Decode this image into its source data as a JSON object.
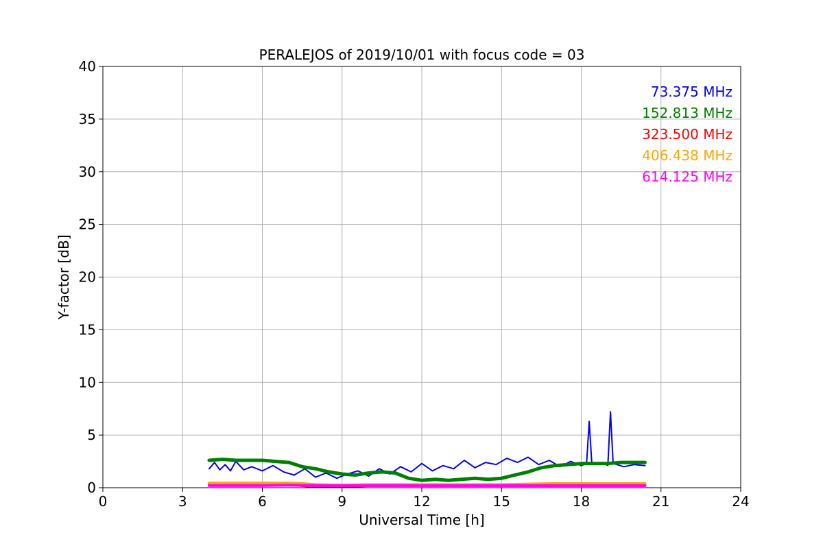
{
  "chart_data": {
    "type": "line",
    "title": "PERALEJOS of 2019/10/01 with focus code = 03",
    "xlabel": "Universal Time [h]",
    "ylabel": "Y-factor [dB]",
    "xlim": [
      0,
      24
    ],
    "ylim": [
      0,
      40
    ],
    "xticks": [
      0,
      3,
      6,
      9,
      12,
      15,
      18,
      21,
      24
    ],
    "yticks": [
      0,
      5,
      10,
      15,
      20,
      25,
      30,
      35,
      40
    ],
    "grid": true,
    "legend_position": "top-right",
    "series": [
      {
        "name": "73.375 MHz",
        "color": "#0000ff",
        "x": [
          4.0,
          4.2,
          4.4,
          4.6,
          4.8,
          5.0,
          5.3,
          5.6,
          6.0,
          6.4,
          6.8,
          7.2,
          7.6,
          8.0,
          8.4,
          8.8,
          9.2,
          9.6,
          10.0,
          10.4,
          10.8,
          11.2,
          11.6,
          12.0,
          12.4,
          12.8,
          13.2,
          13.6,
          14.0,
          14.4,
          14.8,
          15.2,
          15.6,
          16.0,
          16.4,
          16.8,
          17.2,
          17.6,
          18.0,
          18.2,
          18.3,
          18.4,
          18.8,
          19.0,
          19.1,
          19.2,
          19.6,
          20.0,
          20.4
        ],
        "y": [
          1.8,
          2.4,
          1.7,
          2.2,
          1.6,
          2.5,
          1.7,
          2.0,
          1.6,
          2.1,
          1.5,
          1.2,
          1.8,
          1.0,
          1.4,
          0.9,
          1.3,
          1.6,
          1.1,
          1.8,
          1.3,
          2.0,
          1.5,
          2.3,
          1.6,
          2.1,
          1.8,
          2.6,
          1.9,
          2.4,
          2.2,
          2.8,
          2.4,
          2.9,
          2.2,
          2.6,
          2.0,
          2.5,
          2.1,
          2.3,
          6.3,
          2.2,
          2.4,
          2.1,
          7.2,
          2.3,
          2.0,
          2.2,
          2.1
        ]
      },
      {
        "name": "152.813 MHz",
        "color": "#008000",
        "x": [
          4.0,
          4.5,
          5.0,
          5.5,
          6.0,
          6.5,
          7.0,
          7.5,
          8.0,
          8.5,
          9.0,
          9.5,
          10.0,
          10.5,
          11.0,
          11.5,
          12.0,
          12.5,
          13.0,
          13.5,
          14.0,
          14.5,
          15.0,
          15.5,
          16.0,
          16.5,
          17.0,
          17.5,
          18.0,
          18.5,
          19.0,
          19.5,
          20.0,
          20.4
        ],
        "y": [
          2.6,
          2.7,
          2.6,
          2.6,
          2.6,
          2.5,
          2.4,
          2.0,
          1.8,
          1.5,
          1.3,
          1.2,
          1.4,
          1.5,
          1.4,
          0.9,
          0.7,
          0.8,
          0.7,
          0.8,
          0.9,
          0.8,
          0.9,
          1.2,
          1.5,
          1.9,
          2.1,
          2.2,
          2.3,
          2.3,
          2.3,
          2.4,
          2.4,
          2.4
        ]
      },
      {
        "name": "323.500 MHz",
        "color": "#ff0000",
        "x": [
          4.0,
          5.0,
          6.0,
          7.0,
          7.5,
          8.0,
          9.0,
          10.0,
          11.0,
          12.0,
          13.0,
          14.0,
          15.0,
          16.0,
          17.0,
          18.0,
          19.0,
          20.0,
          20.4
        ],
        "y": [
          0.3,
          0.3,
          0.3,
          0.3,
          0.2,
          0.1,
          0.1,
          0.2,
          0.2,
          0.2,
          0.2,
          0.2,
          0.2,
          0.2,
          0.2,
          0.2,
          0.2,
          0.2,
          0.2
        ]
      },
      {
        "name": "406.438 MHz",
        "color": "#ffa500",
        "x": [
          4.0,
          5.0,
          6.0,
          7.0,
          7.5,
          8.0,
          9.0,
          10.0,
          11.0,
          12.0,
          13.0,
          14.0,
          15.0,
          16.0,
          17.0,
          18.0,
          19.0,
          20.0,
          20.4
        ],
        "y": [
          0.45,
          0.45,
          0.45,
          0.45,
          0.4,
          0.3,
          0.25,
          0.3,
          0.3,
          0.3,
          0.3,
          0.3,
          0.3,
          0.35,
          0.4,
          0.4,
          0.4,
          0.4,
          0.4
        ]
      },
      {
        "name": "614.125 MHz",
        "color": "#ff00ff",
        "x": [
          4.0,
          5.0,
          6.0,
          7.0,
          8.0,
          9.0,
          10.0,
          11.0,
          12.0,
          13.0,
          14.0,
          15.0,
          16.0,
          17.0,
          18.0,
          19.0,
          20.0,
          20.4
        ],
        "y": [
          0.2,
          0.2,
          0.2,
          0.25,
          0.2,
          0.2,
          0.2,
          0.2,
          0.2,
          0.2,
          0.2,
          0.2,
          0.2,
          0.2,
          0.2,
          0.2,
          0.2,
          0.2
        ]
      }
    ]
  }
}
